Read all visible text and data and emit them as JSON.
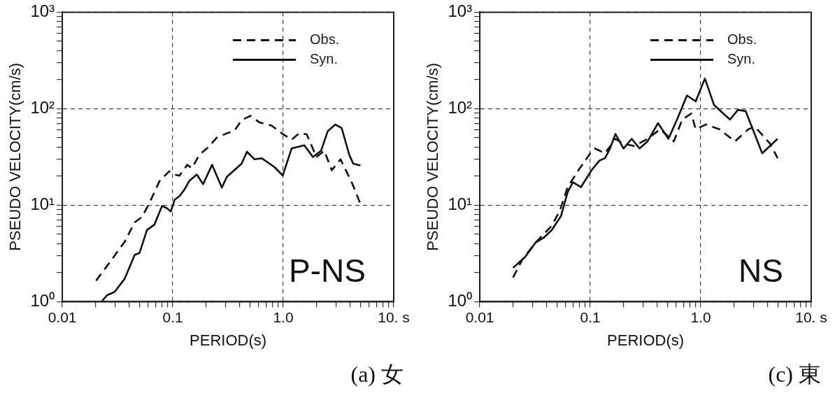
{
  "chart_data": [
    {
      "type": "line",
      "xlabel": "PERIOD(s)",
      "ylabel": "PSEUDO VELOCITY(cm/s)",
      "log": "xy",
      "grid": true,
      "legend": "top right",
      "xlim": [
        0.01,
        10
      ],
      "ylim": [
        1,
        1000
      ],
      "xticks": [
        {
          "value": 0.01,
          "label": "0.01"
        },
        {
          "value": 0.02,
          "label": null
        },
        {
          "value": 0.03,
          "label": null
        },
        {
          "value": 0.04,
          "label": null
        },
        {
          "value": 0.05,
          "label": null
        },
        {
          "value": 0.06,
          "label": null
        },
        {
          "value": 0.07,
          "label": null
        },
        {
          "value": 0.08,
          "label": null
        },
        {
          "value": 0.09,
          "label": null
        },
        {
          "value": 0.1,
          "label": "0.1"
        },
        {
          "value": 0.2,
          "label": null
        },
        {
          "value": 0.3,
          "label": null
        },
        {
          "value": 0.4,
          "label": null
        },
        {
          "value": 0.5,
          "label": null
        },
        {
          "value": 0.6,
          "label": null
        },
        {
          "value": 0.7,
          "label": null
        },
        {
          "value": 0.8,
          "label": null
        },
        {
          "value": 0.9,
          "label": null
        },
        {
          "value": 1,
          "label": "1.0"
        },
        {
          "value": 2,
          "label": null
        },
        {
          "value": 3,
          "label": null
        },
        {
          "value": 4,
          "label": null
        },
        {
          "value": 5,
          "label": null
        },
        {
          "value": 6,
          "label": null
        },
        {
          "value": 7,
          "label": null
        },
        {
          "value": 8,
          "label": null
        },
        {
          "value": 9,
          "label": null
        },
        {
          "value": 10,
          "label": "10. s"
        }
      ],
      "yticks": [
        {
          "value": 1,
          "label": "10⁰"
        },
        {
          "value": 2,
          "label": null
        },
        {
          "value": 3,
          "label": null
        },
        {
          "value": 4,
          "label": null
        },
        {
          "value": 5,
          "label": null
        },
        {
          "value": 6,
          "label": null
        },
        {
          "value": 7,
          "label": null
        },
        {
          "value": 8,
          "label": null
        },
        {
          "value": 9,
          "label": null
        },
        {
          "value": 10,
          "label": "10¹"
        },
        {
          "value": 20,
          "label": null
        },
        {
          "value": 30,
          "label": null
        },
        {
          "value": 40,
          "label": null
        },
        {
          "value": 50,
          "label": null
        },
        {
          "value": 60,
          "label": null
        },
        {
          "value": 70,
          "label": null
        },
        {
          "value": 80,
          "label": null
        },
        {
          "value": 90,
          "label": null
        },
        {
          "value": 100,
          "label": "10²"
        },
        {
          "value": 200,
          "label": null
        },
        {
          "value": 300,
          "label": null
        },
        {
          "value": 400,
          "label": null
        },
        {
          "value": 500,
          "label": null
        },
        {
          "value": 600,
          "label": null
        },
        {
          "value": 700,
          "label": null
        },
        {
          "value": 800,
          "label": null
        },
        {
          "value": 900,
          "label": null
        },
        {
          "value": 1000,
          "label": "10³"
        }
      ],
      "series": [
        {
          "name": "Obs.",
          "color": "#111111",
          "line_style": "dashed",
          "x": [
            0.0202,
            0.0268,
            0.0366,
            0.0452,
            0.0527,
            0.0616,
            0.0759,
            0.093,
            0.104,
            0.115,
            0.135,
            0.149,
            0.174,
            0.209,
            0.25,
            0.309,
            0.36,
            0.42,
            0.504,
            0.61,
            0.786,
            0.97,
            1.19,
            1.39,
            1.63,
            2.0,
            2.35,
            2.75,
            3.3,
            4.2,
            5.0
          ],
          "values": [
            1.65,
            2.54,
            4.16,
            6.64,
            7.55,
            10.6,
            17.8,
            22.5,
            20.8,
            20.2,
            26.2,
            24.2,
            33.2,
            39.7,
            50.1,
            55.6,
            58.8,
            76,
            84.3,
            72,
            66.7,
            55.6,
            47.6,
            55.6,
            54.3,
            31.5,
            36.7,
            23,
            29.9,
            16.9,
            10.3
          ]
        },
        {
          "name": "Syn.",
          "color": "#111111",
          "line_style": "solid",
          "x": [
            0.023,
            0.0255,
            0.0297,
            0.0366,
            0.0452,
            0.05,
            0.0584,
            0.0683,
            0.0799,
            0.0887,
            0.096,
            0.104,
            0.115,
            0.127,
            0.141,
            0.165,
            0.188,
            0.227,
            0.278,
            0.309,
            0.36,
            0.42,
            0.469,
            0.549,
            0.64,
            0.83,
            0.99,
            1.19,
            1.55,
            1.86,
            2.2,
            2.53,
            2.96,
            3.38,
            3.96,
            4.3,
            5.0
          ],
          "values": [
            1.02,
            1.17,
            1.26,
            1.72,
            3.05,
            3.2,
            5.53,
            6.3,
            9.8,
            9.3,
            8.6,
            11.4,
            12.4,
            14.4,
            17.8,
            20.8,
            16.5,
            26.2,
            15.2,
            19.7,
            23,
            26.9,
            35.8,
            29.9,
            30.6,
            24.9,
            20.3,
            38.7,
            41.8,
            31.5,
            36.7,
            58.6,
            68.5,
            63,
            33.2,
            26.9,
            25.8
          ]
        }
      ],
      "annotations": [
        "P-NS",
        "(a) 女"
      ]
    },
    {
      "type": "line",
      "xlabel": "PERIOD(s)",
      "ylabel": "PSEUDO VELOCITY(cm/s)",
      "log": "xy",
      "grid": true,
      "legend": "top right",
      "xlim": [
        0.01,
        10
      ],
      "ylim": [
        1,
        1000
      ],
      "xticks": [
        {
          "value": 0.01,
          "label": "0.01"
        },
        {
          "value": 0.02,
          "label": null
        },
        {
          "value": 0.03,
          "label": null
        },
        {
          "value": 0.04,
          "label": null
        },
        {
          "value": 0.05,
          "label": null
        },
        {
          "value": 0.06,
          "label": null
        },
        {
          "value": 0.07,
          "label": null
        },
        {
          "value": 0.08,
          "label": null
        },
        {
          "value": 0.09,
          "label": null
        },
        {
          "value": 0.1,
          "label": "0.1"
        },
        {
          "value": 0.2,
          "label": null
        },
        {
          "value": 0.3,
          "label": null
        },
        {
          "value": 0.4,
          "label": null
        },
        {
          "value": 0.5,
          "label": null
        },
        {
          "value": 0.6,
          "label": null
        },
        {
          "value": 0.7,
          "label": null
        },
        {
          "value": 0.8,
          "label": null
        },
        {
          "value": 0.9,
          "label": null
        },
        {
          "value": 1,
          "label": "1.0"
        },
        {
          "value": 2,
          "label": null
        },
        {
          "value": 3,
          "label": null
        },
        {
          "value": 4,
          "label": null
        },
        {
          "value": 5,
          "label": null
        },
        {
          "value": 6,
          "label": null
        },
        {
          "value": 7,
          "label": null
        },
        {
          "value": 8,
          "label": null
        },
        {
          "value": 9,
          "label": null
        },
        {
          "value": 10,
          "label": "10. s"
        }
      ],
      "yticks": [
        {
          "value": 1,
          "label": "10⁰"
        },
        {
          "value": 2,
          "label": null
        },
        {
          "value": 3,
          "label": null
        },
        {
          "value": 4,
          "label": null
        },
        {
          "value": 5,
          "label": null
        },
        {
          "value": 6,
          "label": null
        },
        {
          "value": 7,
          "label": null
        },
        {
          "value": 8,
          "label": null
        },
        {
          "value": 9,
          "label": null
        },
        {
          "value": 10,
          "label": "10¹"
        },
        {
          "value": 20,
          "label": null
        },
        {
          "value": 30,
          "label": null
        },
        {
          "value": 40,
          "label": null
        },
        {
          "value": 50,
          "label": null
        },
        {
          "value": 60,
          "label": null
        },
        {
          "value": 70,
          "label": null
        },
        {
          "value": 80,
          "label": null
        },
        {
          "value": 90,
          "label": null
        },
        {
          "value": 100,
          "label": "10²"
        },
        {
          "value": 200,
          "label": null
        },
        {
          "value": 300,
          "label": null
        },
        {
          "value": 400,
          "label": null
        },
        {
          "value": 500,
          "label": null
        },
        {
          "value": 600,
          "label": null
        },
        {
          "value": 700,
          "label": null
        },
        {
          "value": 800,
          "label": null
        },
        {
          "value": 900,
          "label": null
        },
        {
          "value": 1000,
          "label": "10³"
        }
      ],
      "series": [
        {
          "name": "Obs.",
          "color": "#111111",
          "line_style": "dashed",
          "x": [
            0.02,
            0.0243,
            0.032,
            0.0447,
            0.0529,
            0.0624,
            0.0781,
            0.1,
            0.11,
            0.136,
            0.169,
            0.2,
            0.25,
            0.33,
            0.43,
            0.57,
            0.68,
            0.82,
            0.9,
            1.11,
            1.47,
            2.04,
            2.7,
            3.1,
            4.25,
            4.96
          ],
          "values": [
            1.78,
            2.74,
            4.1,
            6.1,
            8.7,
            15.4,
            23,
            34.5,
            38.7,
            34.5,
            48.7,
            43.3,
            41,
            48.7,
            61.3,
            45.8,
            77.1,
            89.1,
            61.3,
            68.5,
            61.3,
            45.8,
            61.3,
            65,
            43.3,
            30.7
          ]
        },
        {
          "name": "Syn.",
          "color": "#111111",
          "line_style": "solid",
          "x": [
            0.02,
            0.0257,
            0.032,
            0.0379,
            0.0447,
            0.0543,
            0.0624,
            0.0697,
            0.0824,
            0.1026,
            0.121,
            0.136,
            0.151,
            0.169,
            0.2,
            0.237,
            0.279,
            0.33,
            0.41,
            0.51,
            0.61,
            0.75,
            0.9,
            1.09,
            1.32,
            1.84,
            2.17,
            2.55,
            3.6,
            4.96
          ],
          "values": [
            2.24,
            2.9,
            4.1,
            4.6,
            5.5,
            7.7,
            13.7,
            17.3,
            15.4,
            23,
            29,
            30.7,
            38.7,
            54.7,
            38.7,
            48.7,
            38.7,
            45.8,
            70.8,
            48.7,
            77.1,
            137,
            119,
            205,
            109,
            77.1,
            97.2,
            94.4,
            34.5,
            48.7
          ]
        }
      ],
      "annotations": [
        "NS",
        "(c) 東"
      ]
    }
  ]
}
